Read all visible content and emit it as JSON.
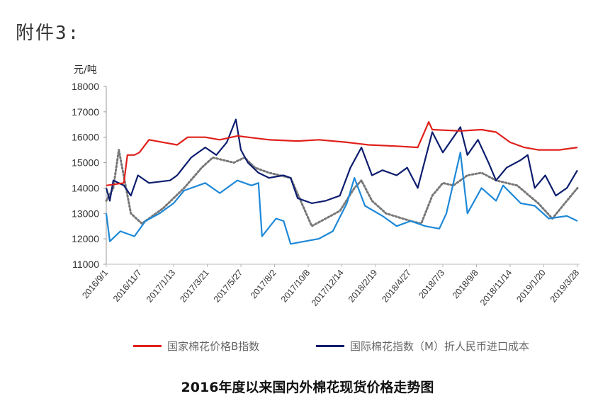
{
  "header_label": "附件3:",
  "chart_data": {
    "type": "line",
    "title": "2016年度以来国内外棉花现货价格走势图",
    "ylabel": "元/吨",
    "xlabel": "",
    "ylim": [
      11000,
      18000
    ],
    "yticks": [
      "11000",
      "12000",
      "13000",
      "14000",
      "15000",
      "16000",
      "17000",
      "18000"
    ],
    "x_unit": "days since 2016/9/1",
    "xlim": [
      0,
      938
    ],
    "xtick_labels": [
      "2016/9/1",
      "2016/11/7",
      "2017/1/13",
      "2017/3/21",
      "2017/5/27",
      "2017/8/2",
      "2017/10/8",
      "2017/12/14",
      "2018/2/19",
      "2018/4/27",
      "2018/7/3",
      "2018/9/8",
      "2018/11/14",
      "2019/1/20",
      "2019/3/28"
    ],
    "grid": false,
    "legend_position": "bottom",
    "series": [
      {
        "name": "国家棉花价格B指数",
        "color": "#e0201b",
        "style": "solid",
        "x": [
          0,
          35,
          42,
          56,
          66,
          85,
          113,
          141,
          162,
          197,
          226,
          261,
          282,
          324,
          381,
          423,
          479,
          522,
          578,
          620,
          642,
          649,
          705,
          747,
          776,
          804,
          832,
          860,
          902,
          938
        ],
        "y": [
          14100,
          14200,
          15300,
          15300,
          15400,
          15900,
          15800,
          15700,
          16000,
          16000,
          15900,
          16050,
          16000,
          15900,
          15850,
          15900,
          15800,
          15700,
          15650,
          15600,
          16600,
          16300,
          16250,
          16300,
          16200,
          15800,
          15600,
          15500,
          15500,
          15600
        ]
      },
      {
        "name": "国际棉花指数（M）折人民币进口成本",
        "color": "#0d1d6e",
        "style": "solid",
        "x": [
          0,
          7,
          14,
          35,
          49,
          63,
          85,
          127,
          141,
          169,
          197,
          219,
          240,
          258,
          268,
          282,
          303,
          324,
          353,
          367,
          381,
          409,
          437,
          465,
          486,
          508,
          529,
          550,
          578,
          599,
          620,
          649,
          670,
          705,
          719,
          740,
          761,
          776,
          797,
          825,
          839,
          853,
          874,
          895,
          917,
          938
        ],
        "y": [
          14000,
          13500,
          14300,
          14100,
          13700,
          14500,
          14200,
          14300,
          14500,
          15200,
          15600,
          15300,
          15800,
          16700,
          15500,
          15000,
          14600,
          14400,
          14500,
          14400,
          13600,
          13400,
          13500,
          13700,
          14800,
          15600,
          14500,
          14700,
          14500,
          14800,
          14000,
          16200,
          15400,
          16400,
          15300,
          15900,
          15000,
          14300,
          14800,
          15100,
          15300,
          14000,
          14500,
          13700,
          14000,
          14700
        ]
      },
      {
        "name": "",
        "color": "#1e88d8",
        "style": "solid",
        "x": [
          0,
          7,
          28,
          56,
          78,
          106,
          134,
          155,
          197,
          226,
          261,
          289,
          303,
          310,
          338,
          353,
          367,
          395,
          423,
          451,
          479,
          494,
          515,
          550,
          578,
          606,
          635,
          663,
          677,
          705,
          719,
          747,
          776,
          790,
          825,
          853,
          881,
          917,
          938
        ],
        "y": [
          13000,
          11900,
          12300,
          12100,
          12700,
          13000,
          13400,
          13900,
          14200,
          13800,
          14300,
          14100,
          14200,
          12100,
          12800,
          12700,
          11800,
          11900,
          12000,
          12300,
          13400,
          14400,
          13300,
          12900,
          12500,
          12700,
          12500,
          12400,
          13000,
          15400,
          13000,
          14000,
          13500,
          14100,
          13400,
          13300,
          12800,
          12900,
          12700
        ]
      },
      {
        "name": "",
        "color": "#777777",
        "style": "dotted",
        "x": [
          0,
          14,
          25,
          49,
          71,
          113,
          155,
          190,
          212,
          254,
          275,
          296,
          324,
          367,
          409,
          437,
          465,
          494,
          508,
          529,
          557,
          606,
          627,
          649,
          670,
          691,
          719,
          747,
          776,
          818,
          860,
          888,
          917,
          938
        ],
        "y": [
          13500,
          14000,
          15500,
          13000,
          12600,
          13200,
          14000,
          14800,
          15200,
          15000,
          15200,
          14800,
          14600,
          14400,
          12500,
          12800,
          13100,
          14000,
          14300,
          13500,
          13000,
          12700,
          12600,
          13700,
          14200,
          14100,
          14500,
          14600,
          14300,
          14100,
          13400,
          12800,
          13500,
          14000
        ]
      }
    ]
  }
}
